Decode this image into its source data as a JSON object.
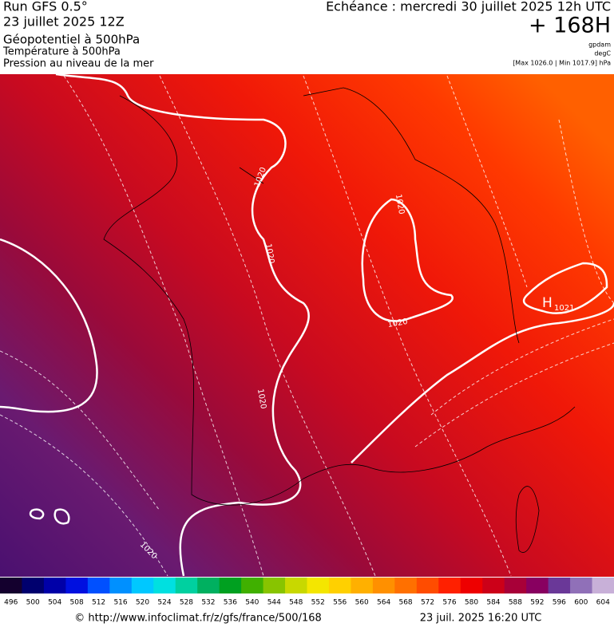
{
  "header": {
    "run": "Run GFS 0.5°",
    "date": "23 juillet 2025 12Z",
    "fields": [
      "Géopotentiel à 500hPa",
      "Température à 500hPa",
      "Pression au niveau de la mer"
    ],
    "echeance": "Echéance : mercredi 30 juillet 2025 12h UTC",
    "lead": "+ 168H",
    "units": [
      "gpdam",
      "degC",
      "[Max 1026.0 | Min 1017.9] hPa"
    ]
  },
  "map": {
    "isobar_labels": [
      "1020",
      "1020",
      "1020",
      "1020",
      "1020",
      "1020"
    ],
    "high": {
      "symbol": "H",
      "value": "1021"
    }
  },
  "legend": {
    "items": [
      {
        "label": 496,
        "color": "#14002e"
      },
      {
        "label": 500,
        "color": "#00006e"
      },
      {
        "label": 504,
        "color": "#0000a8"
      },
      {
        "label": 508,
        "color": "#0010e0"
      },
      {
        "label": 512,
        "color": "#0050ff"
      },
      {
        "label": 516,
        "color": "#0090ff"
      },
      {
        "label": 520,
        "color": "#00c8ff"
      },
      {
        "label": 524,
        "color": "#00e0e0"
      },
      {
        "label": 528,
        "color": "#00d0a0"
      },
      {
        "label": 532,
        "color": "#00b060"
      },
      {
        "label": 536,
        "color": "#00a020"
      },
      {
        "label": 540,
        "color": "#40b000"
      },
      {
        "label": 544,
        "color": "#88c400"
      },
      {
        "label": 548,
        "color": "#c8d800"
      },
      {
        "label": 552,
        "color": "#f4e600"
      },
      {
        "label": 556,
        "color": "#ffd000"
      },
      {
        "label": 560,
        "color": "#ffb000"
      },
      {
        "label": 564,
        "color": "#ff9000"
      },
      {
        "label": 568,
        "color": "#ff7000"
      },
      {
        "label": 572,
        "color": "#ff4c00"
      },
      {
        "label": 576,
        "color": "#ff2000"
      },
      {
        "label": 580,
        "color": "#ee0000"
      },
      {
        "label": 584,
        "color": "#cc0018"
      },
      {
        "label": 588,
        "color": "#a80038"
      },
      {
        "label": 592,
        "color": "#880060"
      },
      {
        "label": 596,
        "color": "#6a3898"
      },
      {
        "label": 600,
        "color": "#9070b8"
      },
      {
        "label": 604,
        "color": "#c8b0d8"
      }
    ]
  },
  "footer": {
    "url": "© http://www.infoclimat.fr/z/gfs/france/500/168",
    "timestamp": "23 juil. 2025 16:20 UTC"
  }
}
